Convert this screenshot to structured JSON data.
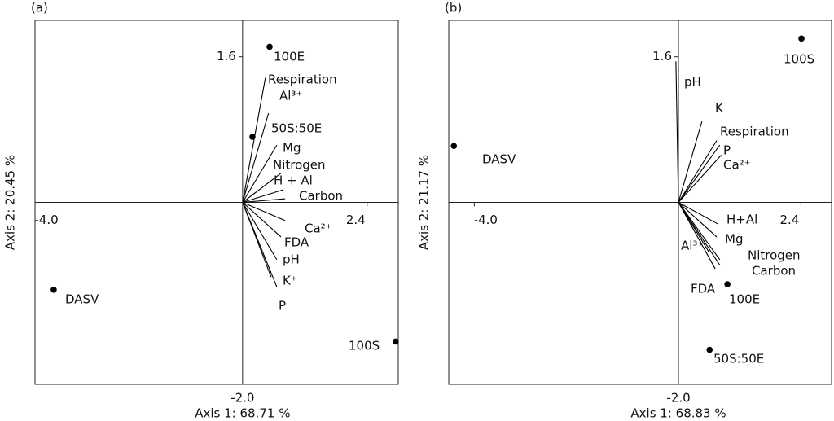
{
  "chart_data": [
    {
      "type": "biplot",
      "title": "(a)",
      "xlabel": "Axis 1: 68.71 %",
      "ylabel": "Axis 2: 20.45 %",
      "xlim": [
        -4.0,
        3.0
      ],
      "ylim": [
        -2.0,
        2.0
      ],
      "xticks": [
        {
          "value": -4.0,
          "label": "-4.0"
        },
        2.4
      ],
      "yticks": [
        1.6,
        {
          "value": -2.0,
          "label": "-2.0"
        }
      ],
      "color": "#000000",
      "points": {
        "names": [
          "100E",
          "50S:50E",
          "DASV",
          "100S"
        ],
        "x": [
          0.52,
          0.19,
          -3.64,
          2.95
        ],
        "y": [
          1.71,
          0.72,
          -0.96,
          -1.53
        ]
      },
      "vectors": {
        "names": [
          "Respiration",
          "Al³⁺",
          "Mg",
          "Nitrogen",
          "H + Al",
          "Carbon",
          "Ca²⁺",
          "FDA",
          "pH",
          "K⁺",
          "P"
        ],
        "x": [
          0.44,
          0.5,
          0.66,
          0.74,
          0.79,
          0.82,
          0.82,
          0.74,
          0.66,
          0.66,
          0.55
        ],
        "y": [
          1.37,
          0.98,
          0.63,
          0.32,
          0.14,
          0.04,
          -0.2,
          -0.38,
          -0.63,
          -0.93,
          -0.82
        ]
      }
    },
    {
      "type": "biplot",
      "title": "(b)",
      "xlabel": "Axis 1: 68.83 %",
      "ylabel": "Axis 2: 21.17 %",
      "xlim": [
        -4.5,
        3.0
      ],
      "ylim": [
        -2.0,
        2.0
      ],
      "xticks": [
        {
          "value": -4.0,
          "label": "-4.0"
        },
        2.4
      ],
      "yticks": [
        1.6,
        {
          "value": -2.0,
          "label": "-2.0"
        }
      ],
      "color": "#000000",
      "points": {
        "names": [
          "100S",
          "DASV",
          "100E",
          "50S:50E"
        ],
        "x": [
          2.41,
          -4.4,
          0.96,
          0.61
        ],
        "y": [
          1.8,
          0.62,
          -0.9,
          -1.62
        ]
      },
      "vectors": {
        "names": [
          "pH",
          "K",
          "Respiration",
          "P",
          "Ca²⁺",
          "H+Al",
          "Mg",
          "Al³⁺",
          "Nitrogen",
          "Carbon",
          "FDA"
        ],
        "x": [
          -0.05,
          0.46,
          0.75,
          0.81,
          0.84,
          0.78,
          0.75,
          0.59,
          0.81,
          0.81,
          0.72
        ],
        "y": [
          1.55,
          0.89,
          0.68,
          0.63,
          0.52,
          -0.24,
          -0.38,
          -0.54,
          -0.63,
          -0.69,
          -0.73
        ]
      }
    }
  ]
}
